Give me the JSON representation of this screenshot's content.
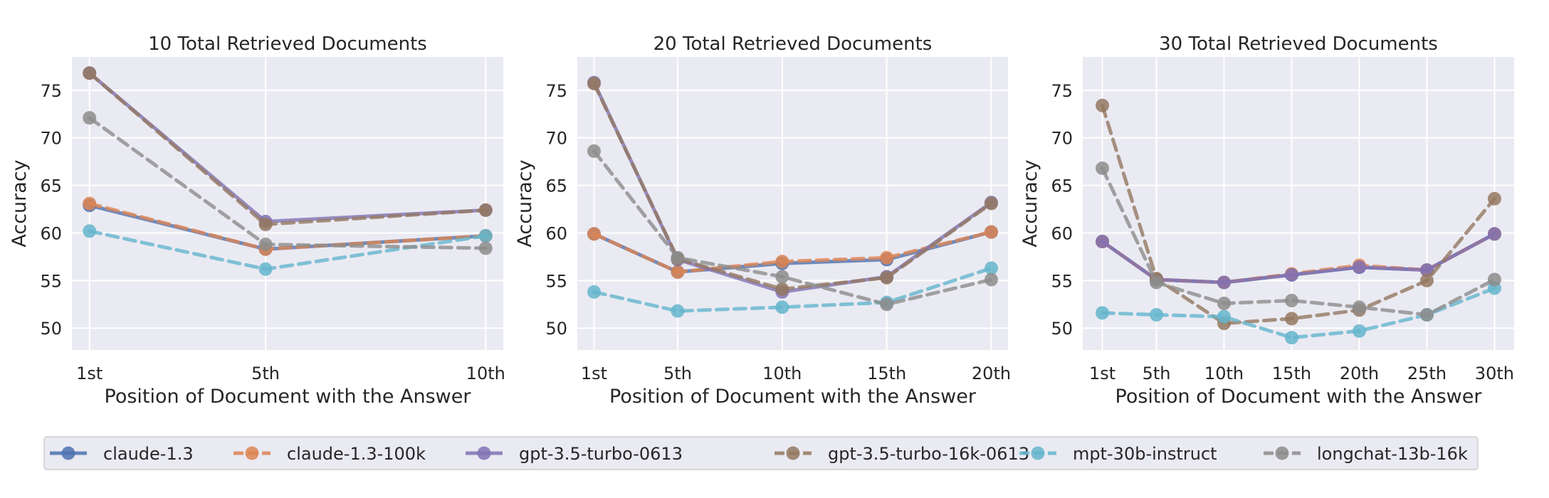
{
  "colors": {
    "panel_bg": "#EAEAF2",
    "grid": "#FFFFFF",
    "claude-1.3": "#4C72B0",
    "claude-1.3-100k": "#DD8452",
    "gpt-3.5-turbo-0613": "#8172B3",
    "gpt-3.5-turbo-16k-0613": "#937860",
    "mpt-30b-instruct": "#64B5CD",
    "longchat-13b-16k": "#8C8C8C"
  },
  "legend": {
    "entries": [
      {
        "name": "claude-1.3",
        "style": "solid"
      },
      {
        "name": "claude-1.3-100k",
        "style": "dashed"
      },
      {
        "name": "gpt-3.5-turbo-0613",
        "style": "solid"
      },
      {
        "name": "gpt-3.5-turbo-16k-0613",
        "style": "dashed"
      },
      {
        "name": "mpt-30b-instruct",
        "style": "dashed"
      },
      {
        "name": "longchat-13b-16k",
        "style": "dashed"
      }
    ],
    "placement": "bottom-center"
  },
  "chart_data": [
    {
      "type": "line",
      "title": "10 Total Retrieved Documents",
      "xlabel": "Position of Document with the Answer",
      "ylabel": "Accuracy",
      "categories": [
        "1st",
        "5th",
        "10th"
      ],
      "x": [
        1,
        5,
        10
      ],
      "xlim": [
        0.6,
        10.4
      ],
      "ylim": [
        47.7,
        78.5
      ],
      "yticks": [
        50,
        55,
        60,
        65,
        70,
        75
      ],
      "grid": true,
      "series": [
        {
          "name": "claude-1.3",
          "values": [
            62.9,
            58.3,
            59.7
          ]
        },
        {
          "name": "claude-1.3-100k",
          "values": [
            63.1,
            58.3,
            59.7
          ]
        },
        {
          "name": "gpt-3.5-turbo-0613",
          "values": [
            76.8,
            61.2,
            62.4
          ]
        },
        {
          "name": "gpt-3.5-turbo-16k-0613",
          "values": [
            76.8,
            60.9,
            62.4
          ]
        },
        {
          "name": "mpt-30b-instruct",
          "values": [
            60.2,
            56.2,
            59.7
          ]
        },
        {
          "name": "longchat-13b-16k",
          "values": [
            72.1,
            58.8,
            58.4
          ]
        }
      ]
    },
    {
      "type": "line",
      "title": "20 Total Retrieved Documents",
      "xlabel": "Position of Document with the Answer",
      "ylabel": "Accuracy",
      "categories": [
        "1st",
        "5th",
        "10th",
        "15th",
        "20th"
      ],
      "x": [
        1,
        5,
        10,
        15,
        20
      ],
      "xlim": [
        0.2,
        20.8
      ],
      "ylim": [
        47.7,
        78.5
      ],
      "yticks": [
        50,
        55,
        60,
        65,
        70,
        75
      ],
      "grid": true,
      "series": [
        {
          "name": "claude-1.3",
          "values": [
            59.9,
            55.9,
            56.8,
            57.2,
            60.1
          ]
        },
        {
          "name": "claude-1.3-100k",
          "values": [
            59.9,
            55.9,
            57.0,
            57.4,
            60.1
          ]
        },
        {
          "name": "gpt-3.5-turbo-0613",
          "values": [
            75.8,
            57.2,
            53.8,
            55.4,
            63.2
          ]
        },
        {
          "name": "gpt-3.5-turbo-16k-0613",
          "values": [
            75.7,
            57.3,
            54.1,
            55.3,
            63.1
          ]
        },
        {
          "name": "mpt-30b-instruct",
          "values": [
            53.8,
            51.8,
            52.2,
            52.7,
            56.3
          ]
        },
        {
          "name": "longchat-13b-16k",
          "values": [
            68.6,
            57.4,
            55.4,
            52.5,
            55.1
          ]
        }
      ]
    },
    {
      "type": "line",
      "title": "30 Total Retrieved Documents",
      "xlabel": "Position of Document with the Answer",
      "ylabel": "Accuracy",
      "categories": [
        "1st",
        "5th",
        "10th",
        "15th",
        "20th",
        "25th",
        "30th"
      ],
      "x": [
        1,
        5,
        10,
        15,
        20,
        25,
        30
      ],
      "xlim": [
        -0.45,
        31.45
      ],
      "ylim": [
        47.7,
        78.5
      ],
      "yticks": [
        50,
        55,
        60,
        65,
        70,
        75
      ],
      "grid": true,
      "series": [
        {
          "name": "claude-1.3",
          "values": [
            59.1,
            55.1,
            54.8,
            55.6,
            56.4,
            56.1,
            59.9
          ]
        },
        {
          "name": "claude-1.3-100k",
          "values": [
            59.1,
            55.1,
            54.8,
            55.7,
            56.6,
            56.1,
            59.9
          ]
        },
        {
          "name": "gpt-3.5-turbo-0613",
          "values": [
            59.1,
            55.1,
            54.8,
            55.6,
            56.4,
            56.1,
            59.9
          ]
        },
        {
          "name": "gpt-3.5-turbo-16k-0613",
          "values": [
            73.4,
            55.2,
            50.5,
            51.0,
            51.9,
            55.0,
            63.6
          ]
        },
        {
          "name": "mpt-30b-instruct",
          "values": [
            51.6,
            51.4,
            51.2,
            49.0,
            49.7,
            51.4,
            54.2
          ]
        },
        {
          "name": "longchat-13b-16k",
          "values": [
            66.8,
            54.8,
            52.6,
            52.9,
            52.2,
            51.4,
            55.1
          ]
        }
      ]
    }
  ]
}
